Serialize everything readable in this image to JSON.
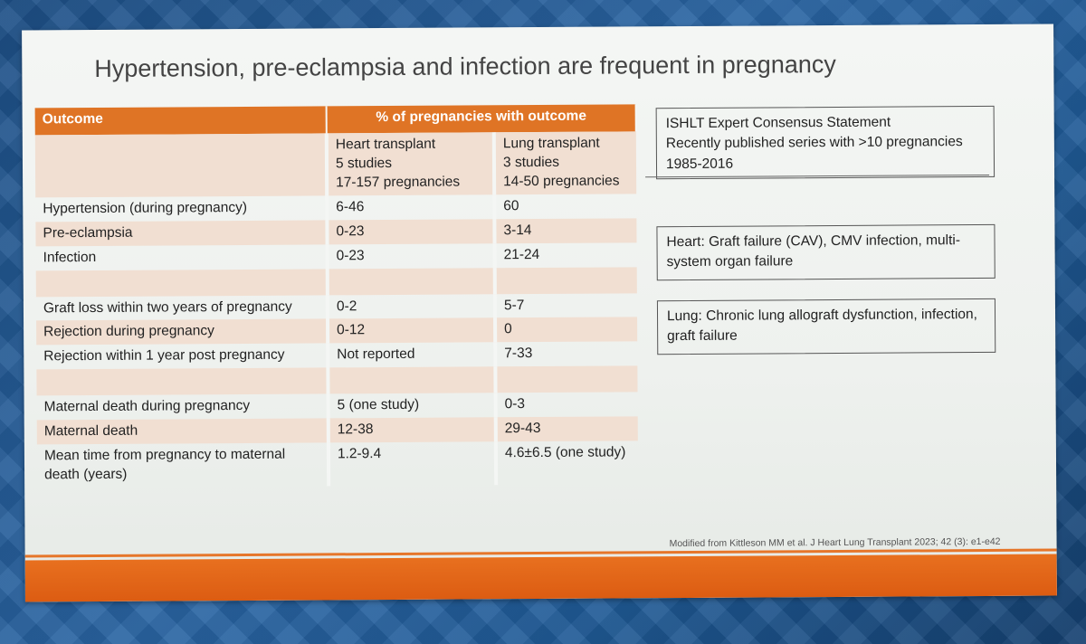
{
  "title": "Hypertension, pre-eclampsia and infection are frequent in pregnancy",
  "table": {
    "header_outcome": "Outcome",
    "header_pct": "% of pregnancies with outcome",
    "heart_col": [
      "Heart transplant",
      "5 studies",
      "17-157 pregnancies"
    ],
    "lung_col": [
      "Lung transplant",
      "3 studies",
      "14-50 pregnancies"
    ],
    "rows": [
      {
        "outcome": "Hypertension (during pregnancy)",
        "heart": "6-46",
        "lung": "60"
      },
      {
        "outcome": "Pre-eclampsia",
        "heart": "0-23",
        "lung": "3-14"
      },
      {
        "outcome": "Infection",
        "heart": "0-23",
        "lung": "21-24"
      },
      {
        "outcome": "Graft loss within two years of pregnancy",
        "heart": "0-2",
        "lung": "5-7"
      },
      {
        "outcome": "Rejection during pregnancy",
        "heart": "0-12",
        "lung": "0"
      },
      {
        "outcome": "Rejection within 1 year post pregnancy",
        "heart": "Not reported",
        "lung": "7-33"
      },
      {
        "outcome": "Maternal death during pregnancy",
        "heart": "5 (one study)",
        "lung": "0-3"
      },
      {
        "outcome": "Maternal death",
        "heart": "12-38",
        "lung": "29-43"
      },
      {
        "outcome": "Mean time from pregnancy to maternal death (years)",
        "heart": "1.2-9.4",
        "lung": "4.6±6.5 (one study)"
      }
    ]
  },
  "box1": [
    "ISHLT Expert Consensus Statement",
    "Recently published series with >10 pregnancies",
    "1985-2016"
  ],
  "box2": "Heart: Graft failure (CAV), CMV infection, multi-system organ failure",
  "box3": "Lung: Chronic lung allograft dysfunction, infection, graft failure",
  "citation": "Modified from Kittleson MM et al. J Heart Lung Transplant 2023; 42 (3): e1-e42",
  "colors": {
    "accent": "#df7425",
    "shade": "#f1dfd2"
  }
}
